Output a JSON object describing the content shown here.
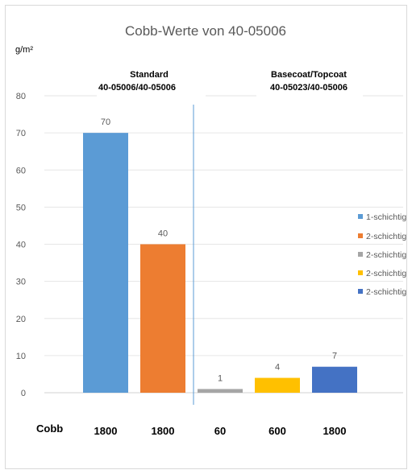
{
  "chart_data": {
    "type": "bar",
    "title": "Cobb-Werte von 40-05006",
    "unit_label": "g/m²",
    "ylim": [
      0,
      80
    ],
    "y_ticks": [
      0,
      10,
      20,
      30,
      40,
      50,
      60,
      70,
      80
    ],
    "grid": true,
    "legend_position": "right",
    "groups": [
      {
        "line1": "Standard",
        "line2": "40-05006/40-05006"
      },
      {
        "line1": "Basecoat/Topcoat",
        "line2": "40-05023/40-05006"
      }
    ],
    "cobb_row_label": "Cobb",
    "series": [
      {
        "name": "1-schichtig",
        "value": 70,
        "label": "70",
        "cobb": "1800",
        "color": "#5b9bd5"
      },
      {
        "name": "2-schichtig",
        "value": 40,
        "label": "40",
        "cobb": "1800",
        "color": "#ed7d31"
      },
      {
        "name": "2-schichtig",
        "value": 1,
        "label": "1",
        "cobb": "60",
        "color": "#a5a5a5"
      },
      {
        "name": "2-schichtig",
        "value": 4,
        "label": "4",
        "cobb": "600",
        "color": "#ffc000"
      },
      {
        "name": "2-schichtig",
        "value": 7,
        "label": "7",
        "cobb": "1800",
        "color": "#4472c4"
      }
    ]
  }
}
